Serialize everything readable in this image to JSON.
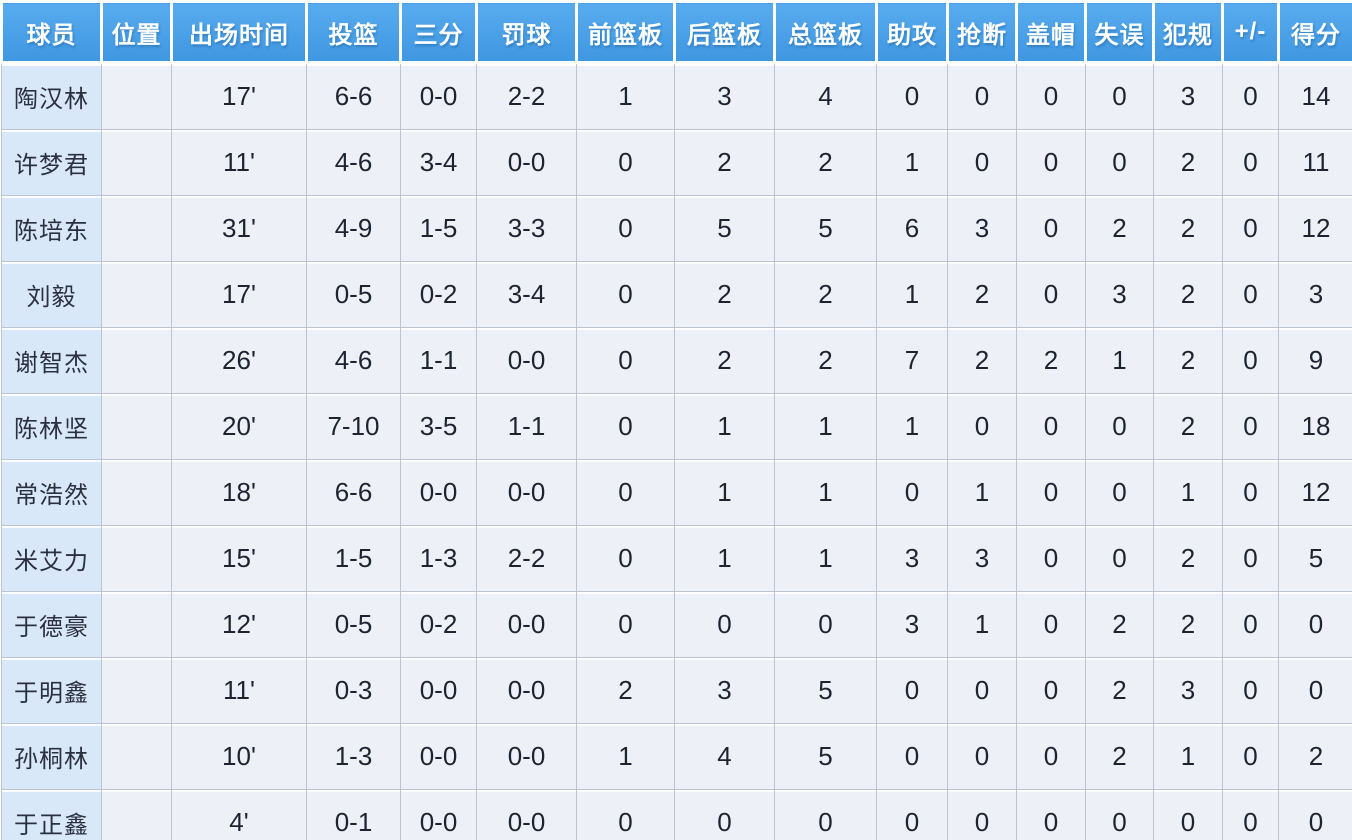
{
  "table": {
    "columns": [
      "球员",
      "位置",
      "出场时间",
      "投篮",
      "三分",
      "罚球",
      "前篮板",
      "后篮板",
      "总篮板",
      "助攻",
      "抢断",
      "盖帽",
      "失误",
      "犯规",
      "+/-",
      "得分"
    ],
    "rows": [
      {
        "player": "陶汉林",
        "position": "",
        "values": [
          "17'",
          "6-6",
          "0-0",
          "2-2",
          "1",
          "3",
          "4",
          "0",
          "0",
          "0",
          "0",
          "3",
          "0",
          "14"
        ]
      },
      {
        "player": "许梦君",
        "position": "",
        "values": [
          "11'",
          "4-6",
          "3-4",
          "0-0",
          "0",
          "2",
          "2",
          "1",
          "0",
          "0",
          "0",
          "2",
          "0",
          "11"
        ]
      },
      {
        "player": "陈培东",
        "position": "",
        "values": [
          "31'",
          "4-9",
          "1-5",
          "3-3",
          "0",
          "5",
          "5",
          "6",
          "3",
          "0",
          "2",
          "2",
          "0",
          "12"
        ]
      },
      {
        "player": "刘毅",
        "position": "",
        "values": [
          "17'",
          "0-5",
          "0-2",
          "3-4",
          "0",
          "2",
          "2",
          "1",
          "2",
          "0",
          "3",
          "2",
          "0",
          "3"
        ]
      },
      {
        "player": "谢智杰",
        "position": "",
        "values": [
          "26'",
          "4-6",
          "1-1",
          "0-0",
          "0",
          "2",
          "2",
          "7",
          "2",
          "2",
          "1",
          "2",
          "0",
          "9"
        ]
      },
      {
        "player": "陈林坚",
        "position": "",
        "values": [
          "20'",
          "7-10",
          "3-5",
          "1-1",
          "0",
          "1",
          "1",
          "1",
          "0",
          "0",
          "0",
          "2",
          "0",
          "18"
        ]
      },
      {
        "player": "常浩然",
        "position": "",
        "values": [
          "18'",
          "6-6",
          "0-0",
          "0-0",
          "0",
          "1",
          "1",
          "0",
          "1",
          "0",
          "0",
          "1",
          "0",
          "12"
        ]
      },
      {
        "player": "米艾力",
        "position": "",
        "values": [
          "15'",
          "1-5",
          "1-3",
          "2-2",
          "0",
          "1",
          "1",
          "3",
          "3",
          "0",
          "0",
          "2",
          "0",
          "5"
        ]
      },
      {
        "player": "于德豪",
        "position": "",
        "values": [
          "12'",
          "0-5",
          "0-2",
          "0-0",
          "0",
          "0",
          "0",
          "3",
          "1",
          "0",
          "2",
          "2",
          "0",
          "0"
        ]
      },
      {
        "player": "于明鑫",
        "position": "",
        "values": [
          "11'",
          "0-3",
          "0-0",
          "0-0",
          "2",
          "3",
          "5",
          "0",
          "0",
          "0",
          "2",
          "3",
          "0",
          "0"
        ]
      },
      {
        "player": "孙桐林",
        "position": "",
        "values": [
          "10'",
          "1-3",
          "0-0",
          "0-0",
          "1",
          "4",
          "5",
          "0",
          "0",
          "0",
          "2",
          "1",
          "0",
          "2"
        ]
      },
      {
        "player": "于正鑫",
        "position": "",
        "values": [
          "4'",
          "0-1",
          "0-0",
          "0-0",
          "0",
          "0",
          "0",
          "0",
          "0",
          "0",
          "0",
          "0",
          "0",
          "0"
        ]
      }
    ]
  },
  "colors": {
    "header_bg": "#47a1e6",
    "header_text": "#ffffff",
    "player_col_bg": "#d9e8f8",
    "cell_bg": "#edf1f7",
    "grid_line": "#bcc4d0",
    "text": "#1d2330"
  }
}
